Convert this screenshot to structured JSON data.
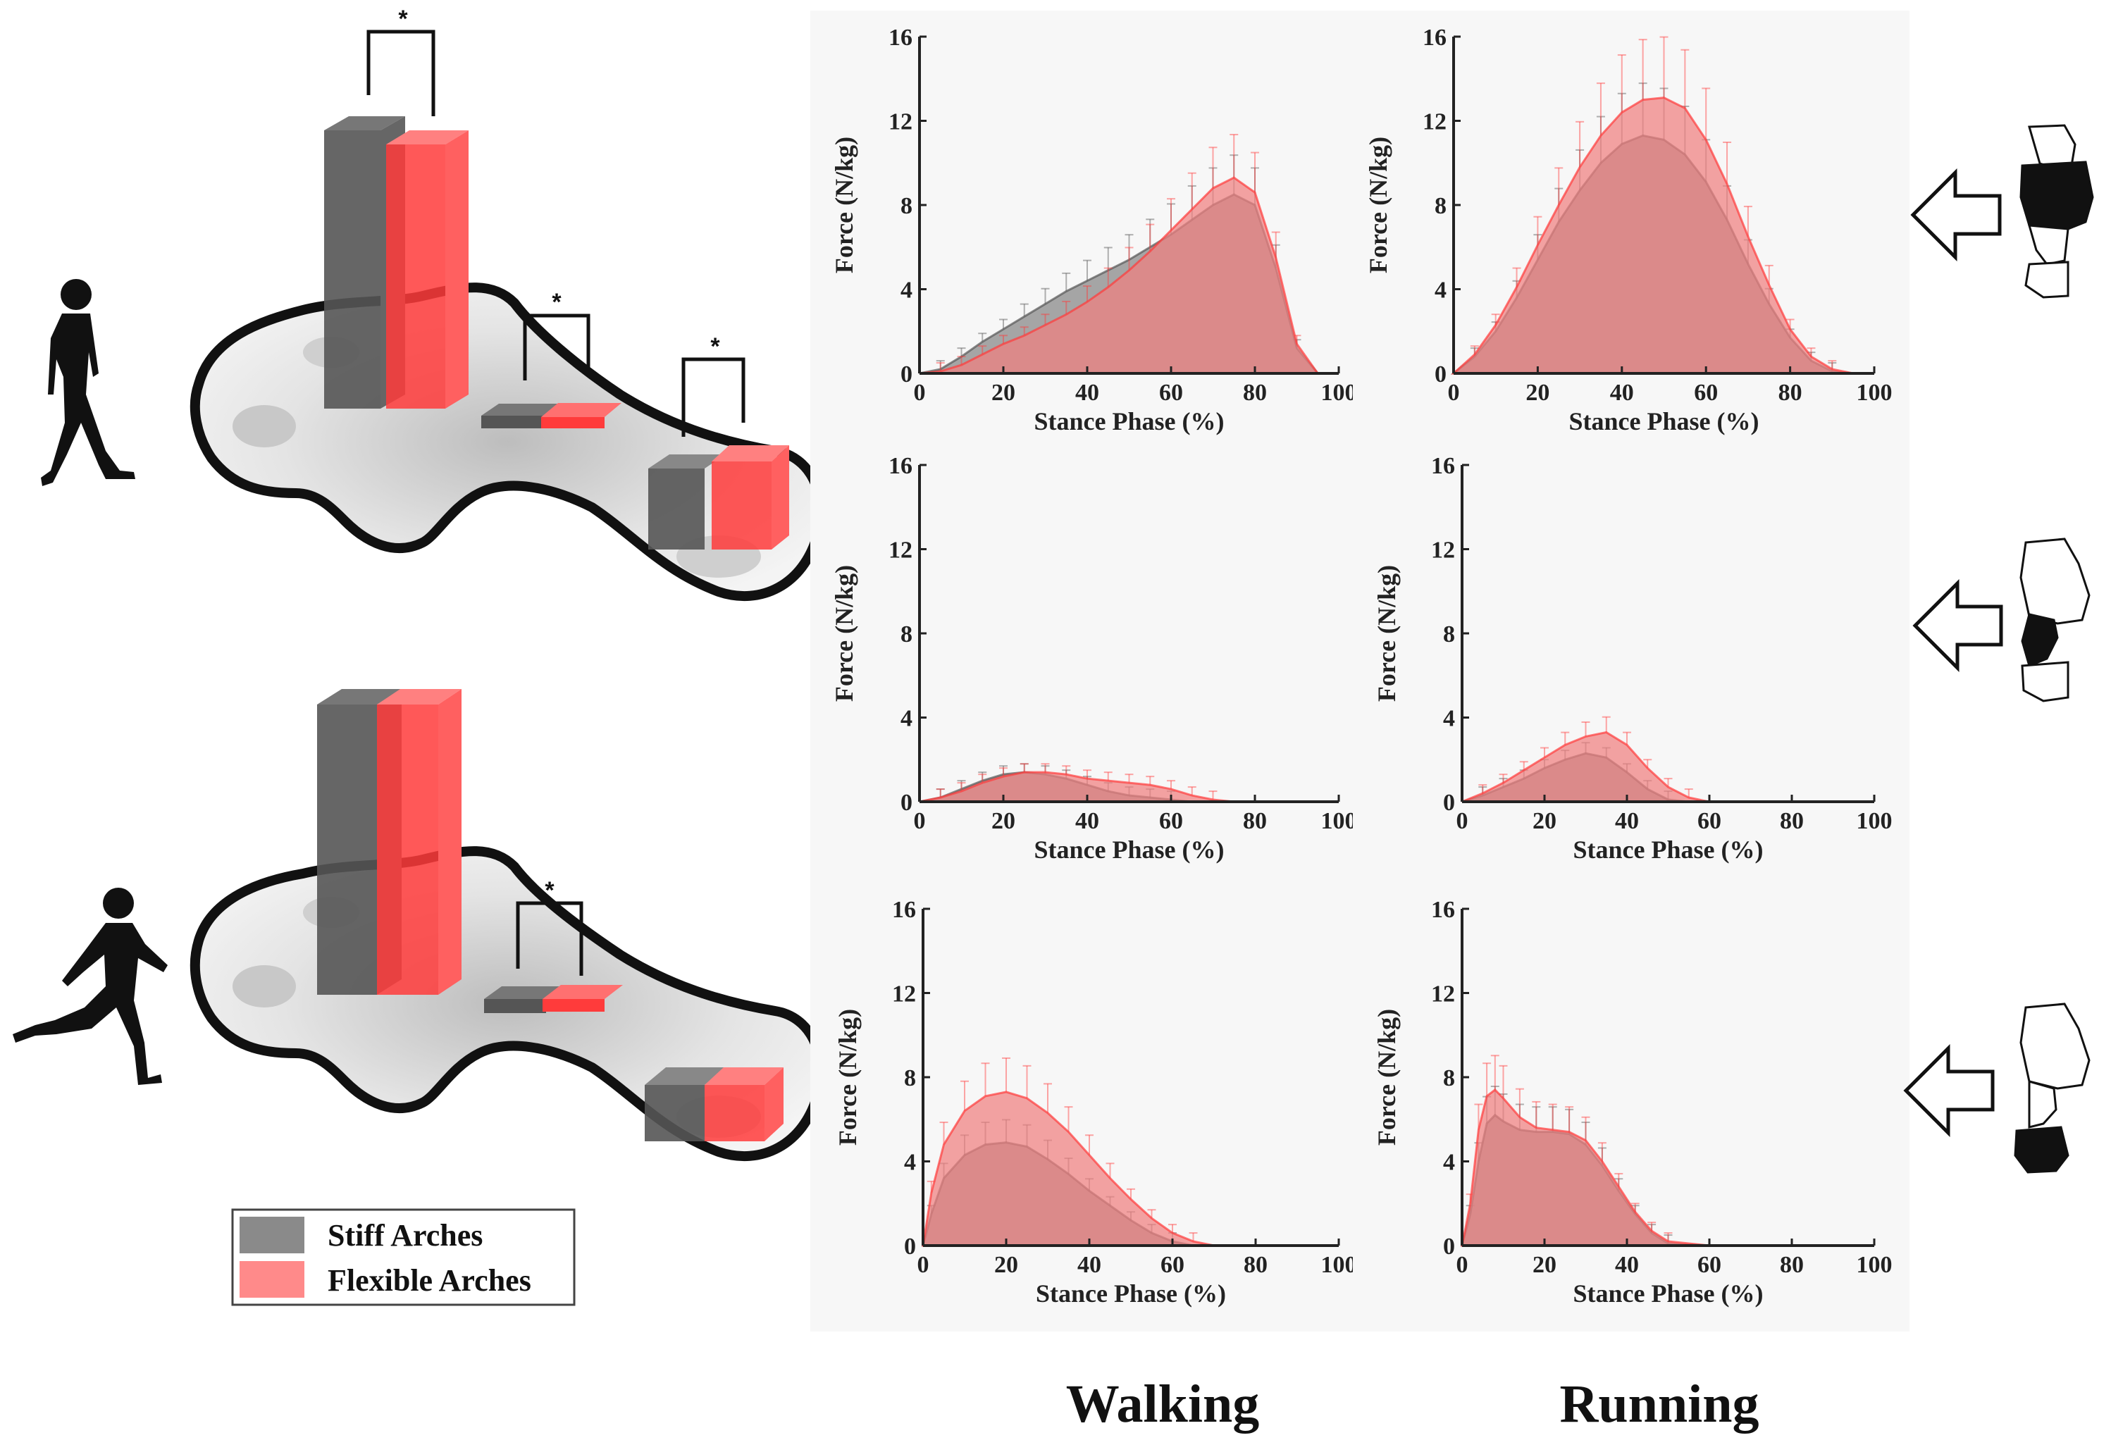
{
  "colors": {
    "stiff": "#555555",
    "flexible": "#ff3b3b",
    "flexible_fill": "#f08080",
    "stiff_fill": "#8a8a8a"
  },
  "legend": {
    "stiff_label": "Stiff Arches",
    "flexible_label": "Flexible Arches"
  },
  "columns": {
    "walking": "Walking",
    "running": "Running"
  },
  "significance_marker": "*",
  "icons": [
    "walking-person-icon",
    "running-person-icon",
    "foot-forefoot-region-icon",
    "foot-midfoot-region-icon",
    "foot-rearfoot-region-icon",
    "arrow-left-icon"
  ],
  "chart_data": [
    {
      "type": "area",
      "id": "walking-forefoot",
      "region": "forefoot",
      "gait": "Walking",
      "xlabel": "Stance Phase (%)",
      "ylabel": "Force (N/kg)",
      "xlim": [
        0,
        100
      ],
      "ylim": [
        0,
        16
      ],
      "xticks": [
        "0",
        "20",
        "40",
        "60",
        "80",
        "100"
      ],
      "yticks": [
        "0",
        "4",
        "8",
        "12",
        "16"
      ],
      "x": [
        0,
        5,
        10,
        15,
        20,
        25,
        30,
        35,
        40,
        45,
        50,
        55,
        60,
        65,
        70,
        75,
        80,
        85,
        90,
        95,
        100
      ],
      "series": [
        {
          "name": "Stiff Arches",
          "values": [
            0,
            0.2,
            0.8,
            1.5,
            2.1,
            2.7,
            3.3,
            3.9,
            4.4,
            4.9,
            5.4,
            6,
            6.6,
            7.3,
            8,
            8.5,
            8,
            5,
            1.2,
            0,
            0
          ]
        },
        {
          "name": "Flexible Arches",
          "values": [
            0,
            0.1,
            0.4,
            0.9,
            1.4,
            1.8,
            2.3,
            2.8,
            3.4,
            4.1,
            4.9,
            5.8,
            6.8,
            7.8,
            8.8,
            9.3,
            8.6,
            5.5,
            1.4,
            0,
            0
          ]
        }
      ]
    },
    {
      "type": "area",
      "id": "running-forefoot",
      "region": "forefoot",
      "gait": "Running",
      "xlabel": "Stance Phase (%)",
      "ylabel": "Force (N/kg)",
      "xlim": [
        0,
        100
      ],
      "ylim": [
        0,
        16
      ],
      "xticks": [
        "0",
        "20",
        "40",
        "60",
        "80",
        "100"
      ],
      "yticks": [
        "0",
        "4",
        "8",
        "12",
        "16"
      ],
      "x": [
        0,
        5,
        10,
        15,
        20,
        25,
        30,
        35,
        40,
        45,
        50,
        55,
        60,
        65,
        70,
        75,
        80,
        85,
        90,
        95,
        100
      ],
      "series": [
        {
          "name": "Stiff Arches",
          "values": [
            0,
            0.8,
            2,
            3.6,
            5.4,
            7.2,
            8.7,
            10,
            10.9,
            11.3,
            11.1,
            10.4,
            9.1,
            7.3,
            5.2,
            3.3,
            1.7,
            0.6,
            0.1,
            0,
            0
          ]
        },
        {
          "name": "Flexible Arches",
          "values": [
            0,
            0.9,
            2.3,
            4.1,
            6.1,
            8,
            9.8,
            11.3,
            12.4,
            13,
            13.1,
            12.6,
            11.1,
            9,
            6.5,
            4.2,
            2.1,
            0.8,
            0.2,
            0,
            0
          ]
        }
      ]
    },
    {
      "type": "area",
      "id": "walking-midfoot",
      "region": "midfoot",
      "gait": "Walking",
      "xlabel": "Stance Phase (%)",
      "ylabel": "Force (N/kg)",
      "xlim": [
        0,
        100
      ],
      "ylim": [
        0,
        16
      ],
      "xticks": [
        "0",
        "20",
        "40",
        "60",
        "80",
        "100"
      ],
      "yticks": [
        "0",
        "4",
        "8",
        "12",
        "16"
      ],
      "x": [
        0,
        5,
        10,
        15,
        20,
        25,
        30,
        35,
        40,
        45,
        50,
        55,
        60,
        65,
        70,
        75,
        80,
        85,
        90,
        95,
        100
      ],
      "series": [
        {
          "name": "Stiff Arches",
          "values": [
            0,
            0.2,
            0.6,
            1,
            1.3,
            1.4,
            1.3,
            1.1,
            0.8,
            0.5,
            0.3,
            0.2,
            0.1,
            0,
            0,
            0,
            0,
            0,
            0,
            0,
            0
          ]
        },
        {
          "name": "Flexible Arches",
          "values": [
            0,
            0.2,
            0.5,
            0.9,
            1.2,
            1.4,
            1.4,
            1.3,
            1.1,
            1,
            0.9,
            0.8,
            0.6,
            0.3,
            0.1,
            0,
            0,
            0,
            0,
            0,
            0
          ]
        }
      ]
    },
    {
      "type": "area",
      "id": "running-midfoot",
      "region": "midfoot",
      "gait": "Running",
      "xlabel": "Stance Phase (%)",
      "ylabel": "Force (N/kg)",
      "xlim": [
        0,
        100
      ],
      "ylim": [
        0,
        16
      ],
      "xticks": [
        "0",
        "20",
        "40",
        "60",
        "80",
        "100"
      ],
      "yticks": [
        "0",
        "4",
        "8",
        "12",
        "16"
      ],
      "x": [
        0,
        5,
        10,
        15,
        20,
        25,
        30,
        35,
        40,
        45,
        50,
        55,
        60,
        65,
        70,
        75,
        80,
        85,
        90,
        95,
        100
      ],
      "series": [
        {
          "name": "Stiff Arches",
          "values": [
            0,
            0.3,
            0.7,
            1.1,
            1.6,
            2,
            2.3,
            2.1,
            1.4,
            0.6,
            0.1,
            0,
            0,
            0,
            0,
            0,
            0,
            0,
            0,
            0,
            0
          ]
        },
        {
          "name": "Flexible Arches",
          "values": [
            0,
            0.4,
            0.9,
            1.5,
            2.1,
            2.7,
            3.1,
            3.3,
            2.7,
            1.6,
            0.7,
            0.2,
            0,
            0,
            0,
            0,
            0,
            0,
            0,
            0,
            0
          ]
        }
      ]
    },
    {
      "type": "area",
      "id": "walking-rearfoot",
      "region": "rearfoot",
      "gait": "Walking",
      "xlabel": "Stance Phase (%)",
      "ylabel": "Force (N/kg)",
      "xlim": [
        0,
        100
      ],
      "ylim": [
        0,
        16
      ],
      "xticks": [
        "0",
        "20",
        "40",
        "60",
        "80",
        "100"
      ],
      "yticks": [
        "0",
        "4",
        "8",
        "12",
        "16"
      ],
      "x": [
        0,
        2,
        5,
        10,
        15,
        20,
        25,
        30,
        35,
        40,
        45,
        50,
        55,
        60,
        65,
        70,
        80,
        90,
        100
      ],
      "series": [
        {
          "name": "Stiff Arches",
          "values": [
            0,
            1.5,
            3.2,
            4.3,
            4.8,
            4.9,
            4.7,
            4.1,
            3.4,
            2.6,
            1.9,
            1.2,
            0.6,
            0.2,
            0,
            0,
            0,
            0,
            0
          ]
        },
        {
          "name": "Flexible Arches",
          "values": [
            0,
            2.5,
            4.8,
            6.4,
            7.1,
            7.3,
            7,
            6.3,
            5.4,
            4.3,
            3.2,
            2.2,
            1.3,
            0.6,
            0.2,
            0,
            0,
            0,
            0
          ]
        }
      ]
    },
    {
      "type": "area",
      "id": "running-rearfoot",
      "region": "rearfoot",
      "gait": "Running",
      "xlabel": "Stance Phase (%)",
      "ylabel": "Force (N/kg)",
      "xlim": [
        0,
        100
      ],
      "ylim": [
        0,
        16
      ],
      "xticks": [
        "0",
        "20",
        "40",
        "60",
        "80",
        "100"
      ],
      "yticks": [
        "0",
        "4",
        "8",
        "12",
        "16"
      ],
      "x": [
        0,
        2,
        4,
        6,
        8,
        10,
        14,
        18,
        22,
        26,
        30,
        34,
        38,
        42,
        46,
        50,
        60,
        80,
        100
      ],
      "series": [
        {
          "name": "Stiff Arches",
          "values": [
            0,
            1.5,
            4,
            5.8,
            6.2,
            5.9,
            5.5,
            5.4,
            5.4,
            5.3,
            4.8,
            3.8,
            2.6,
            1.5,
            0.6,
            0.1,
            0,
            0,
            0
          ]
        },
        {
          "name": "Flexible Arches",
          "values": [
            0,
            2,
            5.5,
            7.1,
            7.4,
            7,
            6.1,
            5.6,
            5.5,
            5.4,
            5,
            4,
            2.8,
            1.6,
            0.7,
            0.2,
            0,
            0,
            0
          ]
        }
      ]
    }
  ]
}
